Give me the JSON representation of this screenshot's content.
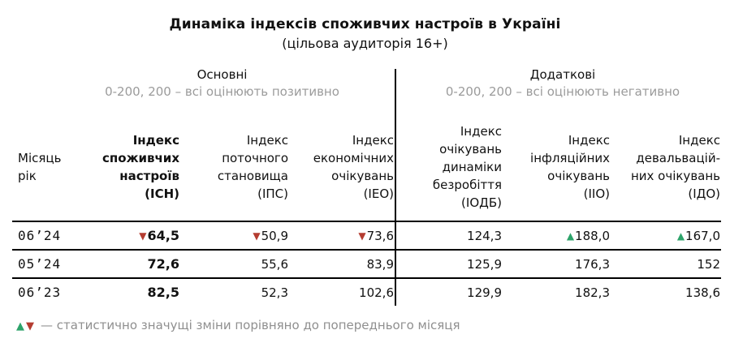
{
  "header": {
    "title": "Динаміка індексів споживчих настроїв в Україні",
    "subtitle": "(цільова аудиторія 16+)"
  },
  "sections": {
    "main": {
      "label": "Основні",
      "scale_note": "0-200, 200 – всі оцінюють позитивно"
    },
    "additional": {
      "label": "Додаткові",
      "scale_note": "0-200, 200 – всі оцінюють негативно"
    }
  },
  "table": {
    "columns": [
      {
        "label": "Місяць\nрік"
      },
      {
        "label": "Індекс\nспоживчих\nнастроїв\n(ІСН)"
      },
      {
        "label": "Індекс\nпоточного\nстановища\n(ІПС)"
      },
      {
        "label": "Індекс\nекономічних\nочікувань\n(ІЕО)"
      },
      {
        "label": "Індекс\nочікувань\nдинаміки\nбезробіття\n(ІОДБ)"
      },
      {
        "label": "Індекс\nінфляційних\nочікувань\n(ІІО)"
      },
      {
        "label": "Індекс\nдевальвацій-\nних очікувань\n(ІДО)"
      }
    ],
    "rows": [
      {
        "period": "06’24",
        "cells": [
          {
            "value": "64,5",
            "trend": "down"
          },
          {
            "value": "50,9",
            "trend": "down"
          },
          {
            "value": "73,6",
            "trend": "down"
          },
          {
            "value": "124,3"
          },
          {
            "value": "188,0",
            "trend": "up"
          },
          {
            "value": "167,0",
            "trend": "up"
          }
        ]
      },
      {
        "period": "05’24",
        "cells": [
          {
            "value": "72,6"
          },
          {
            "value": "55,6"
          },
          {
            "value": "83,9"
          },
          {
            "value": "125,9"
          },
          {
            "value": "176,3"
          },
          {
            "value": "152"
          }
        ]
      },
      {
        "period": "06’23",
        "cells": [
          {
            "value": "82,5"
          },
          {
            "value": "52,3"
          },
          {
            "value": "102,6"
          },
          {
            "value": "129,9"
          },
          {
            "value": "182,3"
          },
          {
            "value": "138,6"
          }
        ]
      }
    ]
  },
  "footer": {
    "legend_icons": [
      "up",
      "down"
    ],
    "note": "— статистично значущі зміни порівняно до попереднього місяця"
  },
  "colors": {
    "up": "#2da36a",
    "down": "#b43c30",
    "muted_text": "#9b9b9b"
  },
  "chart_data": {
    "type": "table",
    "title": "Динаміка індексів споживчих настроїв в Україні (цільова аудиторія 16+)",
    "groups": [
      {
        "name": "Основні",
        "scale": "0-200, 200 – всі оцінюють позитивно",
        "columns": [
          "ІСН",
          "ІПС",
          "ІЕО"
        ]
      },
      {
        "name": "Додаткові",
        "scale": "0-200, 200 – всі оцінюють негативно",
        "columns": [
          "ІОДБ",
          "ІІО",
          "ІДО"
        ]
      }
    ],
    "categories": [
      "06’24",
      "05’24",
      "06’23"
    ],
    "series": [
      {
        "name": "Індекс споживчих настроїв (ІСН)",
        "values": [
          64.5,
          72.6,
          82.5
        ],
        "markers": [
          "down",
          null,
          null
        ]
      },
      {
        "name": "Індекс поточного становища (ІПС)",
        "values": [
          50.9,
          55.6,
          52.3
        ],
        "markers": [
          "down",
          null,
          null
        ]
      },
      {
        "name": "Індекс економічних очікувань (ІЕО)",
        "values": [
          73.6,
          83.9,
          102.6
        ],
        "markers": [
          "down",
          null,
          null
        ]
      },
      {
        "name": "Індекс очікувань динаміки безробіття (ІОДБ)",
        "values": [
          124.3,
          125.9,
          129.9
        ],
        "markers": [
          null,
          null,
          null
        ]
      },
      {
        "name": "Індекс інфляційних очікувань (ІІО)",
        "values": [
          188.0,
          176.3,
          182.3
        ],
        "markers": [
          "up",
          null,
          null
        ]
      },
      {
        "name": "Індекс девальваційних очікувань (ІДО)",
        "values": [
          167.0,
          152,
          138.6
        ],
        "markers": [
          "up",
          null,
          null
        ]
      }
    ],
    "legend": "▲▼ — статистично значущі зміни порівняно до попереднього місяця"
  }
}
